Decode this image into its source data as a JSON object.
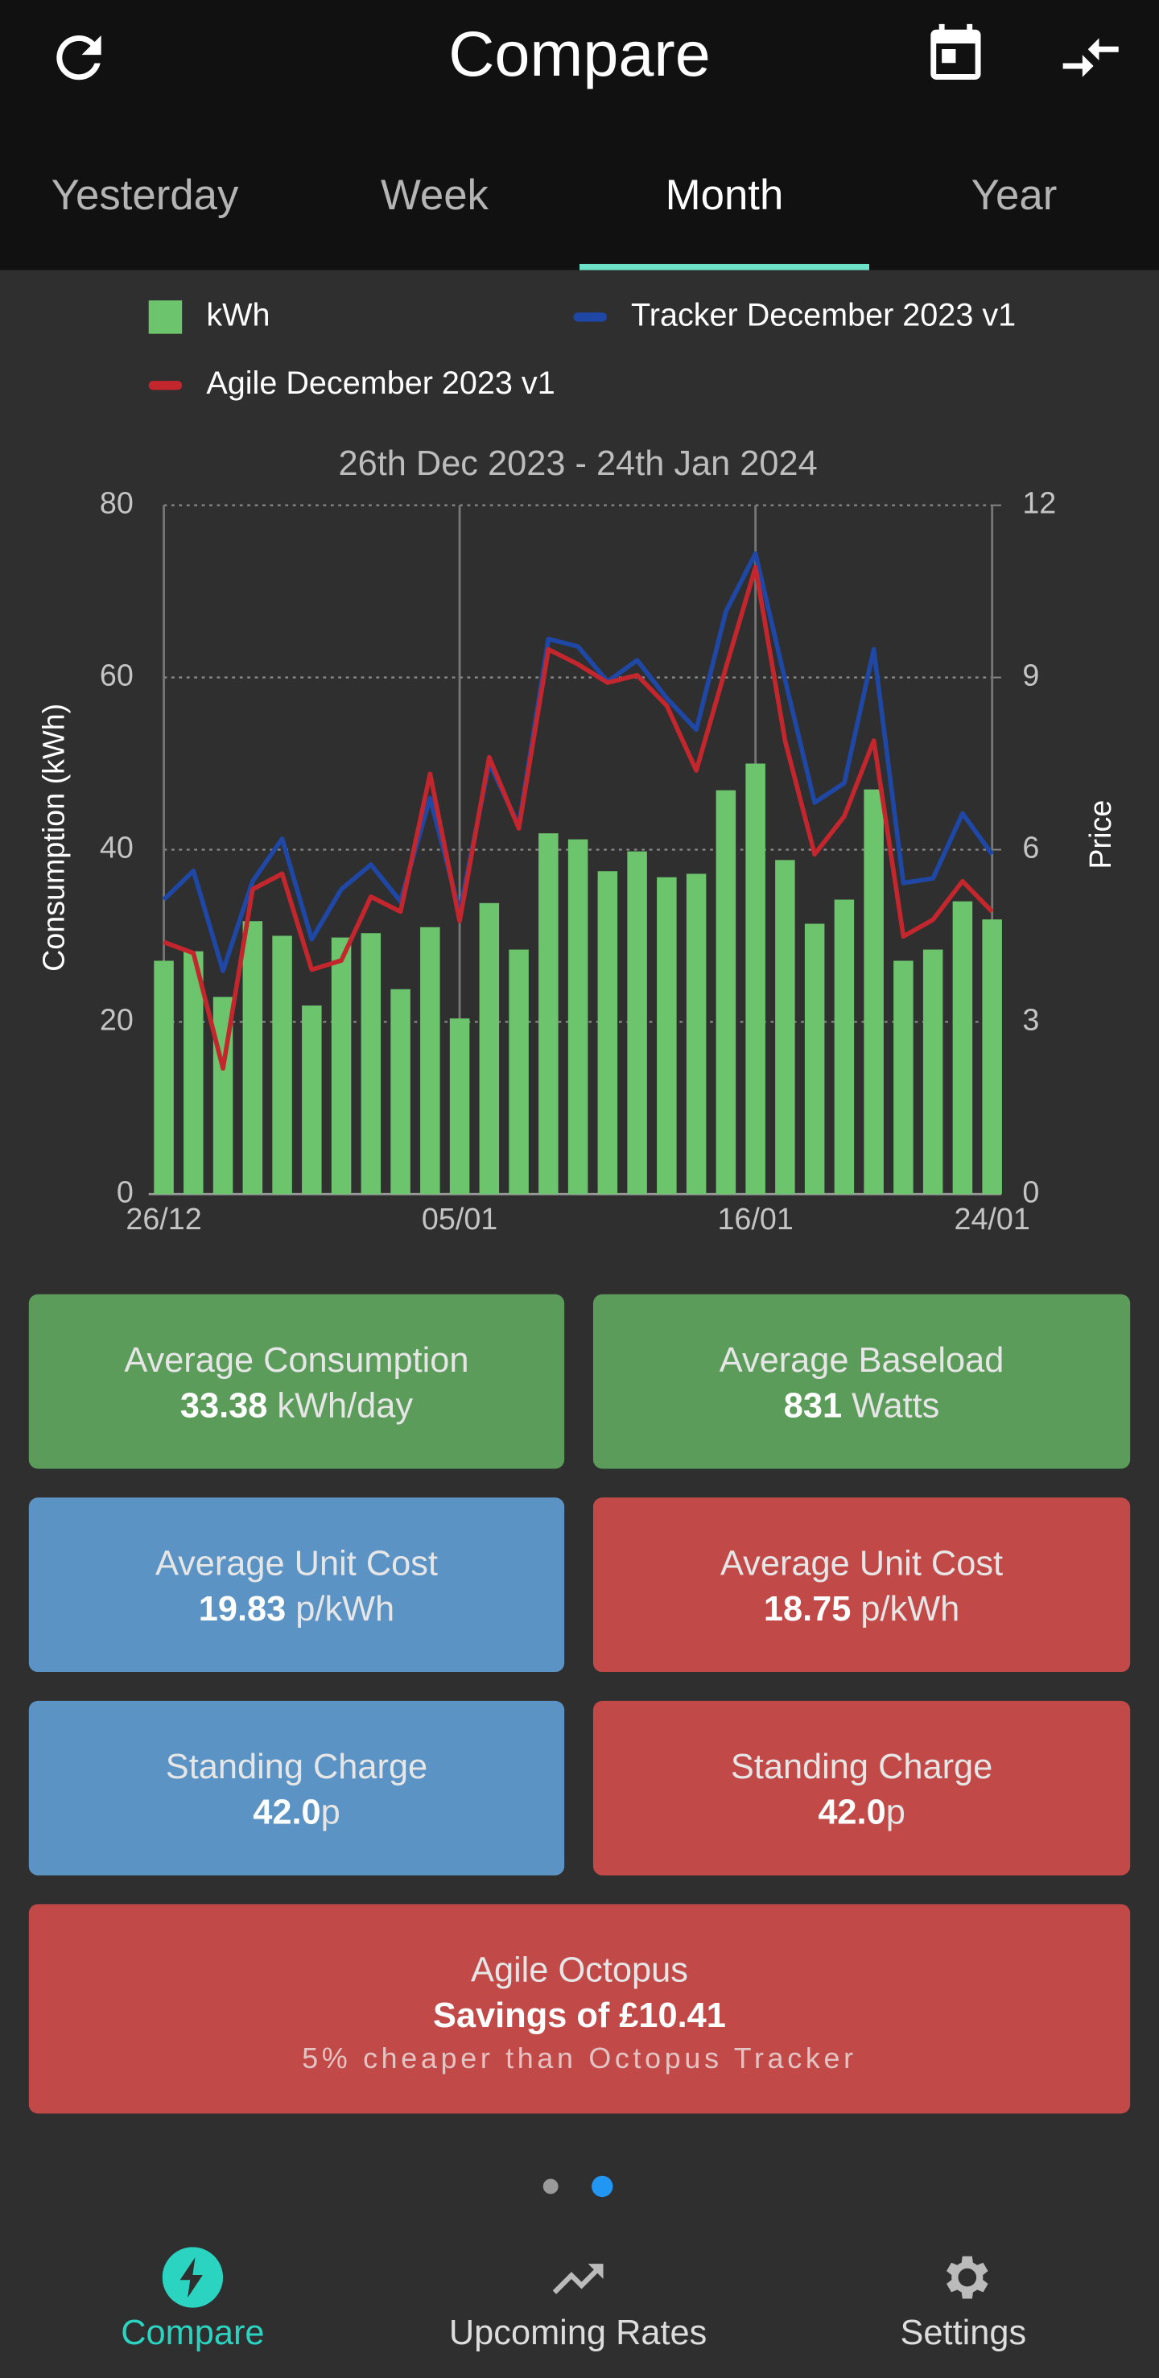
{
  "header": {
    "title": "Compare"
  },
  "tabs": [
    "Yesterday",
    "Week",
    "Month",
    "Year"
  ],
  "chart_data": {
    "type": "bar-line",
    "title": "26th Dec 2023 - 24th Jan 2024",
    "y_label": "Consumption (kWh)",
    "y2_label": "Price",
    "categories": [
      "26/12",
      null,
      null,
      null,
      null,
      null,
      null,
      null,
      null,
      null,
      "05/01",
      null,
      null,
      null,
      null,
      null,
      null,
      null,
      null,
      null,
      "16/01",
      null,
      null,
      null,
      null,
      null,
      null,
      null,
      "24/01"
    ],
    "series": [
      {
        "name": "kWh",
        "color": "#6cc46c",
        "type": "bar",
        "axis": "y",
        "values": [
          27.1,
          28.2,
          22.9,
          31.7,
          30,
          21.9,
          29.8,
          30.3,
          23.8,
          31,
          20.4,
          33.8,
          28.4,
          41.9,
          41.2,
          37.5,
          39.8,
          36.8,
          37.2,
          46.9,
          50,
          38.8,
          31.4,
          34.2,
          47,
          27.1,
          28.4,
          34,
          31.9
        ]
      },
      {
        "name": "Tracker December 2023 v1",
        "color": "#1f48a6",
        "type": "line",
        "axis": "y2",
        "values": [
          5.13,
          5.63,
          3.89,
          5.45,
          6.19,
          4.44,
          5.31,
          5.74,
          5.1,
          6.9,
          4.92,
          7.51,
          6.42,
          9.67,
          9.54,
          8.93,
          9.3,
          8.64,
          8.09,
          10.15,
          11.16,
          8.96,
          6.82,
          7.16,
          9.49,
          5.42,
          5.5,
          6.63,
          5.92
        ]
      },
      {
        "name": "Agile December 2023 v1",
        "color": "#c3272d",
        "type": "line",
        "axis": "y2",
        "values": [
          4.39,
          4.2,
          2.19,
          5.31,
          5.58,
          3.91,
          4.07,
          5.18,
          4.92,
          7.32,
          4.76,
          7.61,
          6.37,
          9.49,
          9.23,
          8.91,
          9.04,
          8.51,
          7.38,
          9.17,
          10.92,
          7.9,
          5.92,
          6.58,
          7.9,
          4.49,
          4.78,
          5.45,
          4.92
        ]
      }
    ],
    "ylim": [
      0,
      80
    ],
    "yticks": [
      0,
      20,
      40,
      60,
      80
    ],
    "y2lim": [
      0,
      12
    ],
    "y2ticks": [
      0,
      3,
      6,
      9,
      12
    ],
    "grid": true
  },
  "cards": [
    {
      "title": "Average Consumption",
      "value": "33.38",
      "unit": "kWh/day"
    },
    {
      "title": "Average Baseload",
      "value": "831",
      "unit": "Watts"
    },
    {
      "title": "Average Unit Cost",
      "value": "19.83",
      "unit": "p/kWh"
    },
    {
      "title": "Average Unit Cost",
      "value": "18.75",
      "unit": "p/kWh"
    },
    {
      "title": "Standing Charge",
      "value": "42.0",
      "unit": "p"
    },
    {
      "title": "Standing Charge",
      "value": "42.0",
      "unit": "p"
    }
  ],
  "summary": {
    "title": "Agile Octopus",
    "savings": "Savings of £10.41",
    "note": "5% cheaper than Octopus Tracker"
  },
  "nav": [
    "Compare",
    "Upcoming Rates",
    "Settings"
  ]
}
